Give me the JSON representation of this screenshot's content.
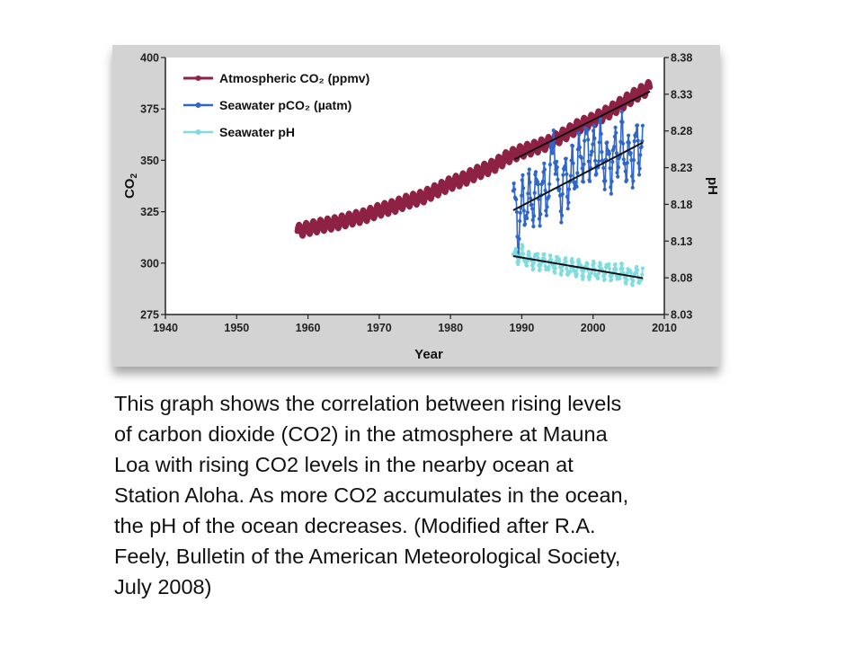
{
  "chart_data": {
    "type": "line",
    "xlabel": "Year",
    "ylabel_left": "CO2",
    "ylabel_right": "pH",
    "x_ticks": [
      1940,
      1950,
      1960,
      1970,
      1980,
      1990,
      2000,
      2010
    ],
    "xlim": [
      1940,
      2010
    ],
    "y_left_ticks": [
      275,
      300,
      325,
      350,
      375,
      400
    ],
    "ylim_left": [
      275,
      400
    ],
    "y_right_ticks": [
      "8.03",
      "8.08",
      "8.13",
      "8.18",
      "8.23",
      "8.28",
      "8.33",
      "8.38"
    ],
    "ylim_right": [
      8.03,
      8.38
    ],
    "grid": false,
    "legend_position": "top-left",
    "series": [
      {
        "name": "Atmospheric CO₂ (ppmv)",
        "color": "#8e2244",
        "axis": "left",
        "x": [
          1958.5,
          1960,
          1962,
          1964,
          1966,
          1968,
          1970,
          1972,
          1974,
          1976,
          1978,
          1980,
          1982,
          1984,
          1986,
          1988,
          1990,
          1992,
          1994,
          1996,
          1998,
          2000,
          2002,
          2004,
          2006,
          2008
        ],
        "values": [
          315.5,
          316.9,
          318.4,
          319.6,
          321.4,
          323.0,
          325.7,
          327.5,
          330.2,
          332.0,
          335.4,
          338.7,
          341.1,
          344.4,
          347.2,
          351.6,
          354.4,
          356.4,
          358.8,
          362.6,
          366.7,
          369.6,
          373.2,
          377.5,
          381.9,
          385.6
        ],
        "seasonal_amplitude": 3
      },
      {
        "name": "Seawater pCO₂ (µatm)",
        "color": "#2f66cc",
        "axis": "left",
        "x": [
          1988.8,
          1989.5,
          1990,
          1991,
          1992,
          1993,
          1994,
          1994.5,
          1995,
          1996,
          1997,
          1998,
          1999,
          2000,
          2001,
          2002,
          2003,
          2004,
          2005,
          2006,
          2007
        ],
        "values": [
          331,
          316,
          328,
          330,
          333,
          335,
          337,
          372,
          330,
          340,
          342,
          349,
          357,
          352,
          355,
          347,
          352,
          358,
          348,
          356,
          359
        ],
        "seasonal_amplitude": 14
      },
      {
        "name": "Seawater pH",
        "color": "#7fdde0",
        "axis": "right",
        "x": [
          1988.8,
          1990,
          1991,
          1992,
          1993,
          1994,
          1995,
          1996,
          1997,
          1998,
          1999,
          2000,
          2001,
          2002,
          2003,
          2004,
          2005,
          2006,
          2007
        ],
        "values": [
          8.108,
          8.112,
          8.103,
          8.105,
          8.1,
          8.098,
          8.1,
          8.095,
          8.092,
          8.094,
          8.09,
          8.089,
          8.088,
          8.091,
          8.086,
          8.087,
          8.083,
          8.083,
          8.082
        ],
        "seasonal_amplitude": 0.012
      }
    ],
    "trend_lines": [
      {
        "axis": "left",
        "x": [
          1989,
          2008
        ],
        "values": [
          350.5,
          383.5
        ]
      },
      {
        "axis": "left",
        "x": [
          1988.8,
          2007
        ],
        "values": [
          325.7,
          358.7
        ]
      },
      {
        "axis": "right",
        "x": [
          1988.8,
          2007
        ],
        "values": [
          8.1095,
          8.0795
        ]
      }
    ]
  },
  "caption": {
    "lines": [
      "This graph shows the correlation between rising levels",
      "of carbon dioxide (CO2) in the atmosphere at Mauna",
      "Loa with rising CO2 levels in the nearby ocean at",
      "Station Aloha. As more CO2 accumulates in the ocean,",
      "the pH of the ocean decreases. (Modified after R.A.",
      "Feely, Bulletin of the American Meteorological Society,",
      "July 2008)"
    ]
  }
}
